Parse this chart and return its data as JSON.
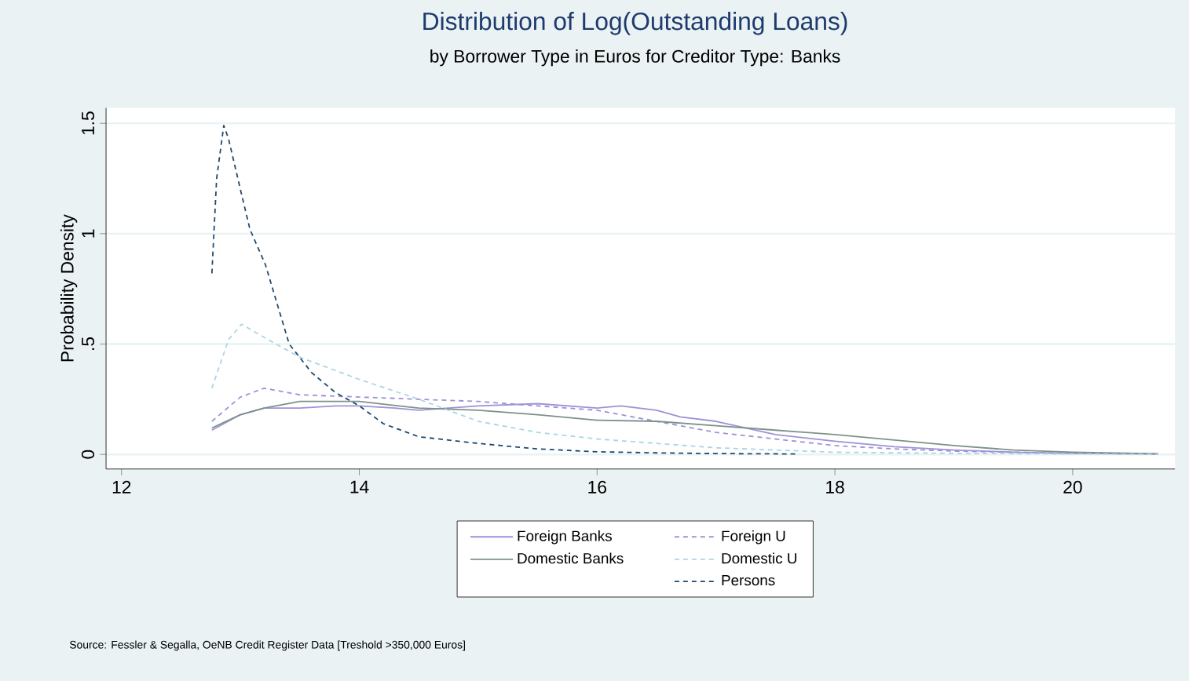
{
  "chart_data": {
    "type": "line",
    "title": "Distribution of Log(Outstanding Loans)",
    "subtitle": "by Borrower Type in Euros for Creditor Type: Banks",
    "ylabel": "Probability Density",
    "xlim": [
      11.87,
      20.86
    ],
    "ylim": [
      -0.066,
      1.57
    ],
    "xticks": [
      12,
      14,
      16,
      18,
      20
    ],
    "yticks": [
      0,
      {
        "value": 0.5,
        "label": ".5"
      },
      1,
      1.5
    ],
    "grid": "y",
    "legend": "bottom",
    "marker": "none",
    "annotations": [
      "Source: Fessler & Segalla, OeNB Credit Register Data [Treshold >350,000 Euros]"
    ],
    "series": [
      {
        "name": "Foreign Banks",
        "color": "#9d92d8",
        "line_style": "solid",
        "x": [
          12.76,
          13.0,
          13.2,
          13.5,
          13.8,
          14.0,
          14.3,
          14.5,
          15.0,
          15.5,
          16.0,
          16.2,
          16.5,
          16.7,
          17.0,
          17.5,
          18.0,
          18.5,
          19.0,
          19.5,
          20.0,
          20.72
        ],
        "values": [
          0.11,
          0.18,
          0.21,
          0.21,
          0.22,
          0.22,
          0.21,
          0.2,
          0.22,
          0.23,
          0.21,
          0.22,
          0.2,
          0.17,
          0.15,
          0.09,
          0.06,
          0.035,
          0.02,
          0.01,
          0.005,
          0.002
        ]
      },
      {
        "name": "Domestic Banks",
        "color": "#7d918a",
        "line_style": "solid",
        "x": [
          12.76,
          13.0,
          13.2,
          13.5,
          14.0,
          14.5,
          15.0,
          15.5,
          16.0,
          16.5,
          17.0,
          17.5,
          18.0,
          18.5,
          19.0,
          19.5,
          20.0,
          20.72
        ],
        "values": [
          0.12,
          0.18,
          0.21,
          0.24,
          0.24,
          0.21,
          0.2,
          0.18,
          0.155,
          0.15,
          0.13,
          0.11,
          0.09,
          0.065,
          0.04,
          0.02,
          0.01,
          0.003
        ]
      },
      {
        "name": "Foreign U",
        "color": "#9d92d8",
        "line_style": "dashed",
        "x": [
          12.76,
          13.0,
          13.2,
          13.5,
          14.0,
          14.5,
          15.0,
          15.5,
          16.0,
          16.5,
          17.0,
          17.5,
          18.0,
          18.5,
          19.0,
          20.0,
          20.72
        ],
        "values": [
          0.15,
          0.26,
          0.3,
          0.27,
          0.26,
          0.25,
          0.24,
          0.22,
          0.2,
          0.15,
          0.1,
          0.07,
          0.04,
          0.025,
          0.015,
          0.005,
          0.002
        ]
      },
      {
        "name": "Domestic U",
        "color": "#a9d6e3",
        "line_style": "dashed",
        "x": [
          12.76,
          12.9,
          13.01,
          13.2,
          13.5,
          14.0,
          14.5,
          15.0,
          15.5,
          16.0,
          16.5,
          17.0,
          17.5,
          18.0,
          19.0,
          20.0,
          20.72
        ],
        "values": [
          0.3,
          0.52,
          0.59,
          0.53,
          0.44,
          0.34,
          0.25,
          0.15,
          0.1,
          0.07,
          0.05,
          0.03,
          0.02,
          0.01,
          0.005,
          0.002,
          0.001
        ]
      },
      {
        "name": "Persons",
        "color": "#1f4a70",
        "line_style": "dashed",
        "x": [
          12.76,
          12.8,
          12.86,
          12.9,
          13.0,
          13.08,
          13.21,
          13.41,
          13.6,
          13.8,
          14.0,
          14.2,
          14.5,
          15.0,
          15.5,
          16.0,
          16.5,
          17.0,
          17.7
        ],
        "values": [
          0.82,
          1.25,
          1.49,
          1.43,
          1.2,
          1.02,
          0.86,
          0.5,
          0.37,
          0.28,
          0.22,
          0.14,
          0.08,
          0.05,
          0.025,
          0.012,
          0.007,
          0.004,
          0.002
        ]
      }
    ]
  }
}
